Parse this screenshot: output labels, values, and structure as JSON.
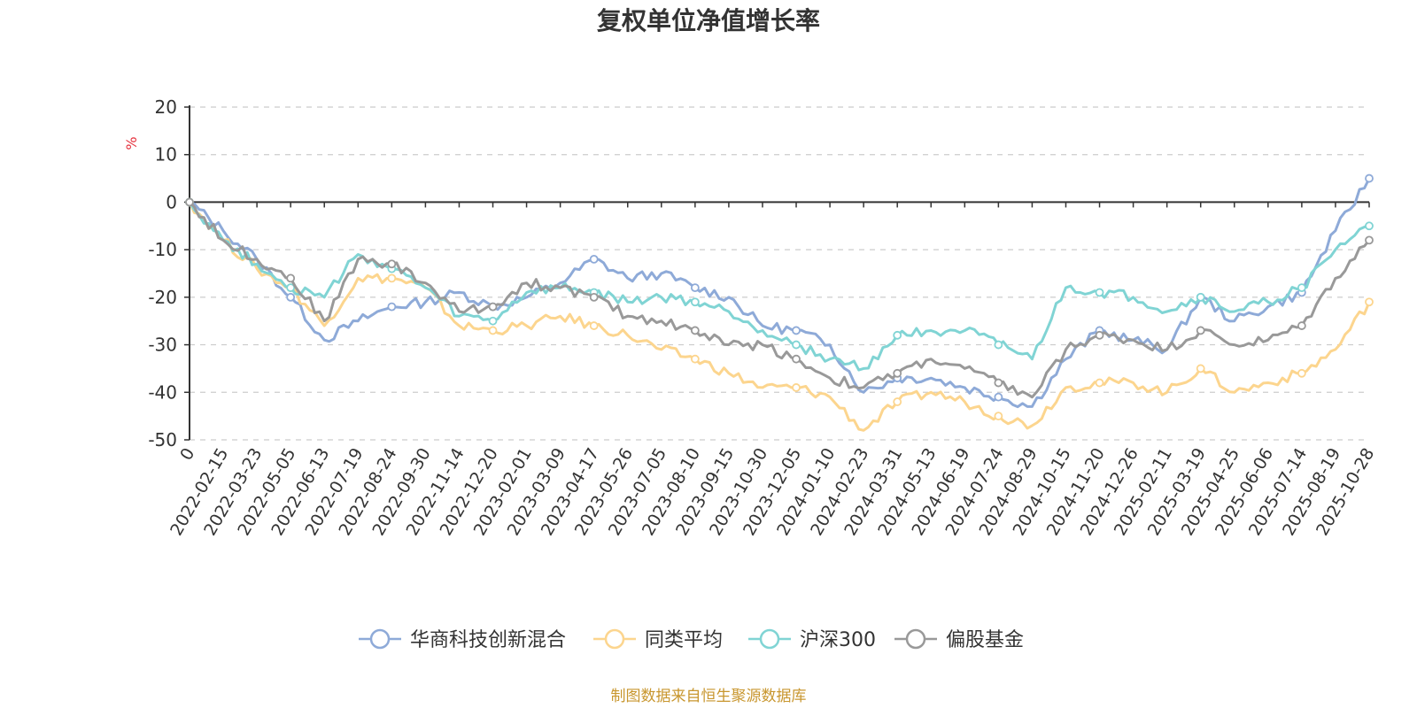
{
  "chart_data": {
    "type": "line",
    "title": "复权单位净值增长率",
    "ylabel": "%",
    "ylim": [
      -50,
      20
    ],
    "yticks": [
      "20",
      "10",
      "0",
      "-10",
      "-20",
      "-30",
      "-40",
      "-50"
    ],
    "x_labels": [
      "0",
      "2022-02-15",
      "2022-03-23",
      "2022-05-05",
      "2022-06-13",
      "2022-07-19",
      "2022-08-24",
      "2022-09-30",
      "2022-11-14",
      "2022-12-20",
      "2023-02-01",
      "2023-03-09",
      "2023-04-17",
      "2023-05-26",
      "2023-07-05",
      "2023-08-10",
      "2023-09-15",
      "2023-10-30",
      "2023-12-05",
      "2024-01-10",
      "2024-02-23",
      "2024-03-31",
      "2024-05-13",
      "2024-06-19",
      "2024-07-24",
      "2024-08-29",
      "2024-10-15",
      "2024-11-20",
      "2024-12-26",
      "2025-02-11",
      "2025-03-19",
      "2025-04-25",
      "2025-06-06",
      "2025-07-14",
      "2025-08-19",
      "2025-10-28"
    ],
    "series": [
      {
        "name": "华商科技创新混合",
        "color": "#8eaad8",
        "values": [
          0,
          -6,
          -12,
          -20,
          -29,
          -25,
          -22,
          -21,
          -19,
          -22,
          -20,
          -17,
          -12,
          -16,
          -15,
          -18,
          -20,
          -26,
          -27,
          -30,
          -40,
          -37,
          -37,
          -39,
          -41,
          -43,
          -33,
          -27,
          -29,
          -31,
          -20,
          -25,
          -22,
          -19,
          -6,
          5
        ]
      },
      {
        "name": "同类平均",
        "color": "#fcd58e",
        "values": [
          0,
          -8,
          -14,
          -18,
          -26,
          -16,
          -16,
          -18,
          -26,
          -27,
          -26,
          -24,
          -26,
          -28,
          -31,
          -33,
          -36,
          -39,
          -39,
          -41,
          -48,
          -42,
          -40,
          -42,
          -45,
          -47,
          -39,
          -38,
          -38,
          -40,
          -35,
          -40,
          -38,
          -36,
          -31,
          -21
        ]
      },
      {
        "name": "沪深300",
        "color": "#80d4d4",
        "values": [
          0,
          -8,
          -13,
          -18,
          -20,
          -11,
          -14,
          -18,
          -24,
          -25,
          -19,
          -18,
          -19,
          -21,
          -20,
          -21,
          -23,
          -27,
          -30,
          -33,
          -35,
          -28,
          -27,
          -27,
          -30,
          -33,
          -18,
          -19,
          -20,
          -23,
          -20,
          -23,
          -21,
          -18,
          -10,
          -5
        ]
      },
      {
        "name": "偏股基金",
        "color": "#999999",
        "values": [
          0,
          -8,
          -12,
          -16,
          -25,
          -12,
          -13,
          -17,
          -23,
          -22,
          -17,
          -18,
          -20,
          -24,
          -25,
          -27,
          -30,
          -30,
          -33,
          -37,
          -39,
          -36,
          -33,
          -35,
          -38,
          -41,
          -31,
          -28,
          -29,
          -31,
          -27,
          -30,
          -29,
          -26,
          -16,
          -8
        ]
      }
    ],
    "legend_position": "bottom-center"
  },
  "footer": {
    "source": "制图数据来自恒生聚源数据库"
  }
}
